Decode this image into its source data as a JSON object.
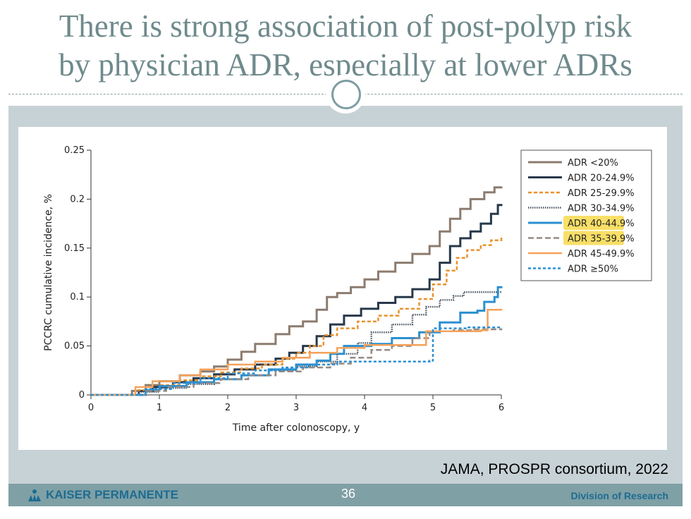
{
  "slide": {
    "title_line1": "There is strong association of post-polyp risk",
    "title_line2": "by physician ADR, especially at lower ADRs",
    "citation": "JAMA, PROSPR consortium, 2022",
    "page_number": "36",
    "footer_logo": "KAISER PERMANENTE",
    "footer_division": "Division of Research"
  },
  "chart_data": {
    "type": "line",
    "xlabel": "Time after colonoscopy, y",
    "ylabel": "PCCRC cumulative incidence, %",
    "xlim": [
      0,
      6
    ],
    "ylim": [
      0,
      0.25
    ],
    "x_ticks": [
      "0",
      "1",
      "2",
      "3",
      "4",
      "5",
      "6"
    ],
    "y_ticks": [
      "0",
      "0.05",
      "0.1",
      "0.15",
      "0.2",
      "0.25"
    ],
    "grid": false,
    "legend_position": "top-right",
    "highlighted_series": [
      "ADR 40-44.9%",
      "ADR 35-39.9%"
    ],
    "series": [
      {
        "name": "ADR <20%",
        "color": "#8c7b6e",
        "dash": "solid",
        "width": 3,
        "points": [
          [
            0,
            0
          ],
          [
            0.55,
            0
          ],
          [
            0.6,
            0.004
          ],
          [
            0.8,
            0.01
          ],
          [
            1.0,
            0.014
          ],
          [
            1.3,
            0.02
          ],
          [
            1.6,
            0.024
          ],
          [
            1.8,
            0.029
          ],
          [
            2.0,
            0.036
          ],
          [
            2.2,
            0.044
          ],
          [
            2.4,
            0.052
          ],
          [
            2.7,
            0.062
          ],
          [
            2.9,
            0.07
          ],
          [
            3.1,
            0.075
          ],
          [
            3.3,
            0.087
          ],
          [
            3.45,
            0.1
          ],
          [
            3.6,
            0.104
          ],
          [
            3.8,
            0.11
          ],
          [
            4.0,
            0.118
          ],
          [
            4.2,
            0.126
          ],
          [
            4.45,
            0.135
          ],
          [
            4.7,
            0.144
          ],
          [
            4.95,
            0.152
          ],
          [
            5.1,
            0.167
          ],
          [
            5.25,
            0.18
          ],
          [
            5.4,
            0.19
          ],
          [
            5.55,
            0.2
          ],
          [
            5.75,
            0.207
          ],
          [
            5.9,
            0.212
          ],
          [
            6.0,
            0.213
          ]
        ]
      },
      {
        "name": "ADR 20-24.9%",
        "color": "#27384a",
        "dash": "solid",
        "width": 3,
        "points": [
          [
            0,
            0
          ],
          [
            0.6,
            0
          ],
          [
            0.7,
            0.004
          ],
          [
            0.9,
            0.008
          ],
          [
            1.2,
            0.013
          ],
          [
            1.5,
            0.017
          ],
          [
            1.8,
            0.021
          ],
          [
            2.1,
            0.026
          ],
          [
            2.4,
            0.031
          ],
          [
            2.7,
            0.037
          ],
          [
            2.9,
            0.043
          ],
          [
            3.1,
            0.05
          ],
          [
            3.3,
            0.06
          ],
          [
            3.5,
            0.072
          ],
          [
            3.7,
            0.081
          ],
          [
            3.95,
            0.088
          ],
          [
            4.2,
            0.094
          ],
          [
            4.45,
            0.1
          ],
          [
            4.7,
            0.108
          ],
          [
            4.95,
            0.118
          ],
          [
            5.1,
            0.135
          ],
          [
            5.25,
            0.152
          ],
          [
            5.4,
            0.16
          ],
          [
            5.55,
            0.167
          ],
          [
            5.7,
            0.175
          ],
          [
            5.85,
            0.185
          ],
          [
            5.95,
            0.194
          ],
          [
            6.0,
            0.195
          ]
        ]
      },
      {
        "name": "ADR 25-29.9%",
        "color": "#e8922e",
        "dash": "5,3",
        "width": 2.5,
        "points": [
          [
            0,
            0
          ],
          [
            0.6,
            0
          ],
          [
            0.7,
            0.005
          ],
          [
            1.0,
            0.01
          ],
          [
            1.3,
            0.015
          ],
          [
            1.6,
            0.019
          ],
          [
            1.9,
            0.023
          ],
          [
            2.2,
            0.027
          ],
          [
            2.5,
            0.031
          ],
          [
            2.8,
            0.037
          ],
          [
            3.0,
            0.043
          ],
          [
            3.2,
            0.05
          ],
          [
            3.4,
            0.061
          ],
          [
            3.6,
            0.068
          ],
          [
            3.9,
            0.075
          ],
          [
            4.2,
            0.081
          ],
          [
            4.5,
            0.088
          ],
          [
            4.8,
            0.098
          ],
          [
            5.0,
            0.113
          ],
          [
            5.2,
            0.127
          ],
          [
            5.35,
            0.14
          ],
          [
            5.5,
            0.148
          ],
          [
            5.7,
            0.153
          ],
          [
            5.85,
            0.158
          ],
          [
            6.0,
            0.163
          ]
        ]
      },
      {
        "name": "ADR 30-34.9%",
        "color": "#4a5560",
        "dash": "1.5,1.5",
        "width": 2.5,
        "points": [
          [
            0,
            0
          ],
          [
            0.6,
            0
          ],
          [
            0.7,
            0.003
          ],
          [
            1.0,
            0.007
          ],
          [
            1.4,
            0.011
          ],
          [
            1.8,
            0.016
          ],
          [
            2.2,
            0.02
          ],
          [
            2.6,
            0.025
          ],
          [
            3.0,
            0.029
          ],
          [
            3.3,
            0.034
          ],
          [
            3.6,
            0.042
          ],
          [
            3.9,
            0.053
          ],
          [
            4.1,
            0.064
          ],
          [
            4.4,
            0.072
          ],
          [
            4.7,
            0.082
          ],
          [
            4.9,
            0.09
          ],
          [
            5.1,
            0.097
          ],
          [
            5.3,
            0.101
          ],
          [
            5.45,
            0.105
          ],
          [
            5.7,
            0.105
          ],
          [
            6.0,
            0.106
          ]
        ]
      },
      {
        "name": "ADR 40-44.9%",
        "color": "#2b8fd0",
        "dash": "solid",
        "width": 3,
        "points": [
          [
            0,
            0
          ],
          [
            0.65,
            0
          ],
          [
            0.8,
            0.005
          ],
          [
            1.0,
            0.009
          ],
          [
            1.4,
            0.013
          ],
          [
            1.8,
            0.016
          ],
          [
            2.2,
            0.02
          ],
          [
            2.6,
            0.026
          ],
          [
            3.0,
            0.031
          ],
          [
            3.3,
            0.035
          ],
          [
            3.5,
            0.042
          ],
          [
            3.7,
            0.05
          ],
          [
            4.1,
            0.052
          ],
          [
            4.4,
            0.058
          ],
          [
            4.8,
            0.064
          ],
          [
            5.1,
            0.074
          ],
          [
            5.4,
            0.084
          ],
          [
            5.65,
            0.086
          ],
          [
            5.75,
            0.095
          ],
          [
            5.9,
            0.1
          ],
          [
            5.95,
            0.11
          ],
          [
            6.0,
            0.111
          ]
        ]
      },
      {
        "name": "ADR 35-39.9%",
        "color": "#958a83",
        "dash": "8,4",
        "width": 2.5,
        "points": [
          [
            0,
            0
          ],
          [
            0.6,
            0
          ],
          [
            0.8,
            0.004
          ],
          [
            1.1,
            0.008
          ],
          [
            1.5,
            0.012
          ],
          [
            1.9,
            0.016
          ],
          [
            2.3,
            0.02
          ],
          [
            2.7,
            0.024
          ],
          [
            3.1,
            0.028
          ],
          [
            3.5,
            0.032
          ],
          [
            3.8,
            0.038
          ],
          [
            4.1,
            0.046
          ],
          [
            4.4,
            0.05
          ],
          [
            4.7,
            0.058
          ],
          [
            4.95,
            0.065
          ],
          [
            5.3,
            0.066
          ],
          [
            5.6,
            0.067
          ],
          [
            6.0,
            0.068
          ]
        ]
      },
      {
        "name": "ADR 45-49.9%",
        "color": "#f5a25b",
        "dash": "solid",
        "width": 2.5,
        "points": [
          [
            0,
            0
          ],
          [
            0.55,
            0
          ],
          [
            0.65,
            0.008
          ],
          [
            0.9,
            0.014
          ],
          [
            1.3,
            0.02
          ],
          [
            1.6,
            0.026
          ],
          [
            2.0,
            0.031
          ],
          [
            2.4,
            0.034
          ],
          [
            2.8,
            0.038
          ],
          [
            3.2,
            0.043
          ],
          [
            3.6,
            0.048
          ],
          [
            4.0,
            0.051
          ],
          [
            4.5,
            0.051
          ],
          [
            4.9,
            0.065
          ],
          [
            5.3,
            0.065
          ],
          [
            5.7,
            0.066
          ],
          [
            5.8,
            0.087
          ],
          [
            6.0,
            0.088
          ]
        ]
      },
      {
        "name": "ADR ≥50%",
        "color": "#2a8fd4",
        "dash": "4,3",
        "width": 2.5,
        "points": [
          [
            0,
            0
          ],
          [
            0.6,
            0
          ],
          [
            0.8,
            0.006
          ],
          [
            1.2,
            0.012
          ],
          [
            1.6,
            0.017
          ],
          [
            2.0,
            0.022
          ],
          [
            2.4,
            0.025
          ],
          [
            2.8,
            0.028
          ],
          [
            3.2,
            0.031
          ],
          [
            3.6,
            0.034
          ],
          [
            4.0,
            0.034
          ],
          [
            4.5,
            0.034
          ],
          [
            4.95,
            0.035
          ],
          [
            5.0,
            0.068
          ],
          [
            5.5,
            0.069
          ],
          [
            6.0,
            0.069
          ]
        ]
      }
    ]
  }
}
